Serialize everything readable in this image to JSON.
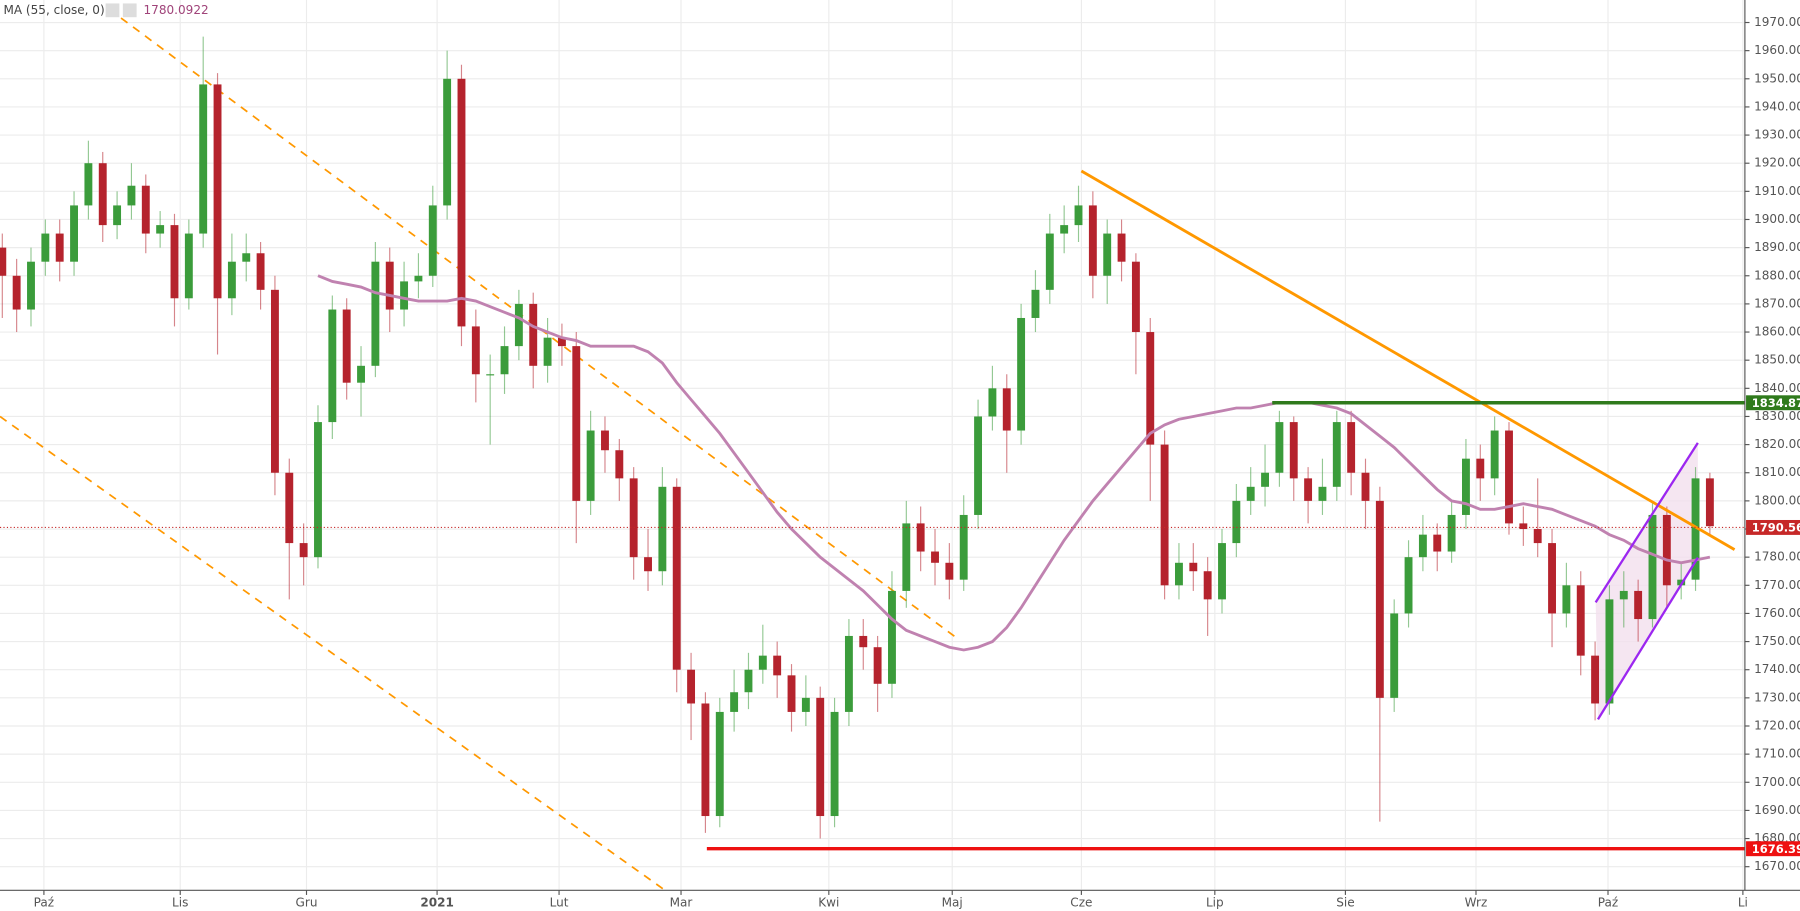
{
  "chart_data": {
    "type": "candlestick",
    "xlim": [
      -0.16,
      121.44
    ],
    "xticks": [
      {
        "value": 2.9,
        "label": "Paź"
      },
      {
        "value": 12.4,
        "label": "Lis"
      },
      {
        "value": 21.2,
        "label": "Gru"
      },
      {
        "value": 30.3,
        "label": "2021"
      },
      {
        "value": 38.8,
        "label": "Lut"
      },
      {
        "value": 47.3,
        "label": "Mar"
      },
      {
        "value": 57.6,
        "label": "Kwi"
      },
      {
        "value": 66.2,
        "label": "Maj"
      },
      {
        "value": 75.2,
        "label": "Cze"
      },
      {
        "value": 84.5,
        "label": "Lip"
      },
      {
        "value": 93.6,
        "label": "Sie"
      },
      {
        "value": 102.7,
        "label": "Wrz"
      },
      {
        "value": 111.9,
        "label": "Paź"
      },
      {
        "value": 121.3,
        "label": "Li"
      }
    ],
    "ylim": [
      1662,
      1978
    ],
    "yticks": [
      {
        "value": 1670,
        "label": "1670.00"
      },
      {
        "value": 1680,
        "label": "1680.00"
      },
      {
        "value": 1690,
        "label": "1690.00"
      },
      {
        "value": 1700,
        "label": "1700.00"
      },
      {
        "value": 1710,
        "label": "1710.00"
      },
      {
        "value": 1720,
        "label": "1720.00"
      },
      {
        "value": 1730,
        "label": "1730.00"
      },
      {
        "value": 1740,
        "label": "1740.00"
      },
      {
        "value": 1750,
        "label": "1750.00"
      },
      {
        "value": 1760,
        "label": "1760.00"
      },
      {
        "value": 1770,
        "label": "1770.00"
      },
      {
        "value": 1780,
        "label": "1780.00"
      },
      {
        "value": 1790,
        "label": "1790.00"
      },
      {
        "value": 1800,
        "label": "1800.00"
      },
      {
        "value": 1810,
        "label": "1810.00"
      },
      {
        "value": 1820,
        "label": "1820.00"
      },
      {
        "value": 1830,
        "label": "1830.00"
      },
      {
        "value": 1840,
        "label": "1840.00"
      },
      {
        "value": 1850,
        "label": "1850.00"
      },
      {
        "value": 1860,
        "label": "1860.00"
      },
      {
        "value": 1870,
        "label": "1870.00"
      },
      {
        "value": 1880,
        "label": "1880.00"
      },
      {
        "value": 1890,
        "label": "1890.00"
      },
      {
        "value": 1900,
        "label": "1900.00"
      },
      {
        "value": 1910,
        "label": "1910.00"
      },
      {
        "value": 1920,
        "label": "1920.00"
      },
      {
        "value": 1930,
        "label": "1930.00"
      },
      {
        "value": 1940,
        "label": "1940.00"
      },
      {
        "value": 1950,
        "label": "1950.00"
      },
      {
        "value": 1960,
        "label": "1960.00"
      },
      {
        "value": 1970,
        "label": "1970.00"
      }
    ],
    "grid": true,
    "up_color": "#3b9c3b",
    "down_color": "#b5232d",
    "open": [
      1890,
      1880,
      1868,
      1885,
      1895,
      1885,
      1905,
      1920,
      1898,
      1905,
      1912,
      1895,
      1898,
      1872,
      1895,
      1948,
      1872,
      1885,
      1888,
      1875,
      1810,
      1785,
      1780,
      1828,
      1868,
      1842,
      1848,
      1885,
      1868,
      1878,
      1880,
      1905,
      1950,
      1862,
      1845,
      1845,
      1855,
      1870,
      1848,
      1858,
      1855,
      1800,
      1825,
      1818,
      1808,
      1780,
      1775,
      1805,
      1740,
      1728,
      1688,
      1725,
      1732,
      1740,
      1745,
      1738,
      1725,
      1730,
      1688,
      1725,
      1752,
      1748,
      1735,
      1768,
      1792,
      1782,
      1778,
      1772,
      1795,
      1830,
      1840,
      1825,
      1865,
      1875,
      1895,
      1898,
      1905,
      1880,
      1895,
      1885,
      1860,
      1820,
      1770,
      1778,
      1775,
      1765,
      1785,
      1800,
      1805,
      1810,
      1828,
      1808,
      1800,
      1805,
      1828,
      1810,
      1800,
      1730,
      1760,
      1780,
      1788,
      1782,
      1795,
      1815,
      1808,
      1825,
      1792,
      1790,
      1785,
      1760,
      1770,
      1745,
      1728,
      1765,
      1768,
      1758,
      1795,
      1770,
      1772,
      1808
    ],
    "high": [
      1895,
      1886,
      1890,
      1900,
      1900,
      1910,
      1928,
      1924,
      1910,
      1920,
      1916,
      1903,
      1902,
      1900,
      1965,
      1952,
      1895,
      1895,
      1892,
      1880,
      1815,
      1792,
      1834,
      1873,
      1872,
      1855,
      1892,
      1890,
      1885,
      1888,
      1912,
      1960,
      1955,
      1868,
      1852,
      1862,
      1875,
      1874,
      1865,
      1863,
      1860,
      1832,
      1830,
      1822,
      1812,
      1790,
      1812,
      1808,
      1746,
      1732,
      1730,
      1740,
      1746,
      1756,
      1750,
      1742,
      1738,
      1734,
      1730,
      1758,
      1758,
      1752,
      1775,
      1800,
      1798,
      1790,
      1785,
      1802,
      1836,
      1848,
      1845,
      1870,
      1882,
      1902,
      1905,
      1912,
      1910,
      1900,
      1900,
      1888,
      1865,
      1825,
      1785,
      1785,
      1780,
      1790,
      1806,
      1812,
      1820,
      1832,
      1830,
      1812,
      1815,
      1832,
      1832,
      1815,
      1805,
      1765,
      1786,
      1795,
      1792,
      1800,
      1822,
      1820,
      1830,
      1828,
      1798,
      1808,
      1790,
      1778,
      1775,
      1750,
      1770,
      1775,
      1772,
      1800,
      1798,
      1778,
      1812,
      1810
    ],
    "low": [
      1865,
      1860,
      1862,
      1880,
      1878,
      1880,
      1900,
      1892,
      1893,
      1900,
      1888,
      1890,
      1862,
      1868,
      1890,
      1852,
      1866,
      1878,
      1868,
      1802,
      1765,
      1770,
      1776,
      1822,
      1836,
      1830,
      1844,
      1860,
      1862,
      1872,
      1876,
      1900,
      1855,
      1835,
      1820,
      1838,
      1850,
      1840,
      1842,
      1848,
      1785,
      1795,
      1810,
      1800,
      1772,
      1768,
      1770,
      1732,
      1715,
      1682,
      1684,
      1718,
      1726,
      1735,
      1730,
      1718,
      1720,
      1680,
      1684,
      1720,
      1740,
      1725,
      1730,
      1762,
      1775,
      1770,
      1765,
      1768,
      1790,
      1825,
      1810,
      1820,
      1860,
      1870,
      1888,
      1892,
      1872,
      1870,
      1878,
      1845,
      1800,
      1765,
      1765,
      1768,
      1752,
      1760,
      1780,
      1795,
      1798,
      1805,
      1800,
      1792,
      1795,
      1800,
      1802,
      1790,
      1686,
      1725,
      1755,
      1775,
      1775,
      1778,
      1790,
      1800,
      1802,
      1788,
      1784,
      1780,
      1748,
      1755,
      1738,
      1722,
      1724,
      1755,
      1750,
      1755,
      1762,
      1765,
      1768,
      1788
    ],
    "close": [
      1880,
      1868,
      1885,
      1895,
      1885,
      1905,
      1920,
      1898,
      1905,
      1912,
      1895,
      1898,
      1872,
      1895,
      1948,
      1872,
      1885,
      1888,
      1875,
      1810,
      1785,
      1780,
      1828,
      1868,
      1842,
      1848,
      1885,
      1868,
      1878,
      1880,
      1905,
      1950,
      1862,
      1845,
      1845,
      1855,
      1870,
      1848,
      1858,
      1855,
      1800,
      1825,
      1818,
      1808,
      1780,
      1775,
      1805,
      1740,
      1728,
      1688,
      1725,
      1732,
      1740,
      1745,
      1738,
      1725,
      1730,
      1688,
      1725,
      1752,
      1748,
      1735,
      1768,
      1792,
      1782,
      1778,
      1772,
      1795,
      1830,
      1840,
      1825,
      1865,
      1875,
      1895,
      1898,
      1905,
      1880,
      1895,
      1885,
      1860,
      1820,
      1770,
      1778,
      1775,
      1765,
      1785,
      1800,
      1805,
      1810,
      1828,
      1808,
      1800,
      1805,
      1828,
      1810,
      1800,
      1730,
      1760,
      1780,
      1788,
      1782,
      1795,
      1815,
      1808,
      1825,
      1792,
      1790,
      1785,
      1760,
      1770,
      1745,
      1728,
      1765,
      1768,
      1758,
      1795,
      1770,
      1772,
      1808,
      1791
    ],
    "ma": {
      "name": "MA (55, close, 0)",
      "value": 1780.0922,
      "color": "#c082b0",
      "values": [
        null,
        null,
        null,
        null,
        null,
        null,
        null,
        null,
        null,
        null,
        null,
        null,
        null,
        null,
        null,
        null,
        null,
        null,
        null,
        null,
        null,
        null,
        1880,
        1878,
        1877,
        1876,
        1874,
        1873,
        1872,
        1871,
        1871,
        1871,
        1872,
        1871,
        1869,
        1867,
        1865,
        1862,
        1860,
        1858,
        1857,
        1855,
        1855,
        1855,
        1855,
        1853,
        1849,
        1842,
        1836,
        1830,
        1824,
        1817,
        1810,
        1803,
        1796,
        1790,
        1785,
        1780,
        1776,
        1772,
        1768,
        1763,
        1758,
        1754,
        1752,
        1750,
        1748,
        1747,
        1748,
        1750,
        1755,
        1762,
        1770,
        1778,
        1786,
        1793,
        1800,
        1806,
        1812,
        1818,
        1824,
        1827,
        1829,
        1830,
        1831,
        1832,
        1833,
        1833,
        1834,
        1835,
        1835,
        1835,
        1834,
        1833,
        1831,
        1827,
        1823,
        1819,
        1814,
        1809,
        1804,
        1800,
        1799,
        1797,
        1797,
        1798,
        1799,
        1798,
        1797,
        1795,
        1793,
        1791,
        1788,
        1786,
        1783,
        1781,
        1779,
        1778,
        1779,
        1780
      ]
    },
    "hlines": [
      {
        "value": 1834.87,
        "color": "#2f7a1c",
        "style": "solid",
        "start": 88.5
      },
      {
        "value": 1790.56,
        "color": "#c62828",
        "style": "dotted",
        "start": -0.16
      },
      {
        "value": 1676.39,
        "color": "#ee1111",
        "style": "solid",
        "start": 49.1
      }
    ]
  }
}
